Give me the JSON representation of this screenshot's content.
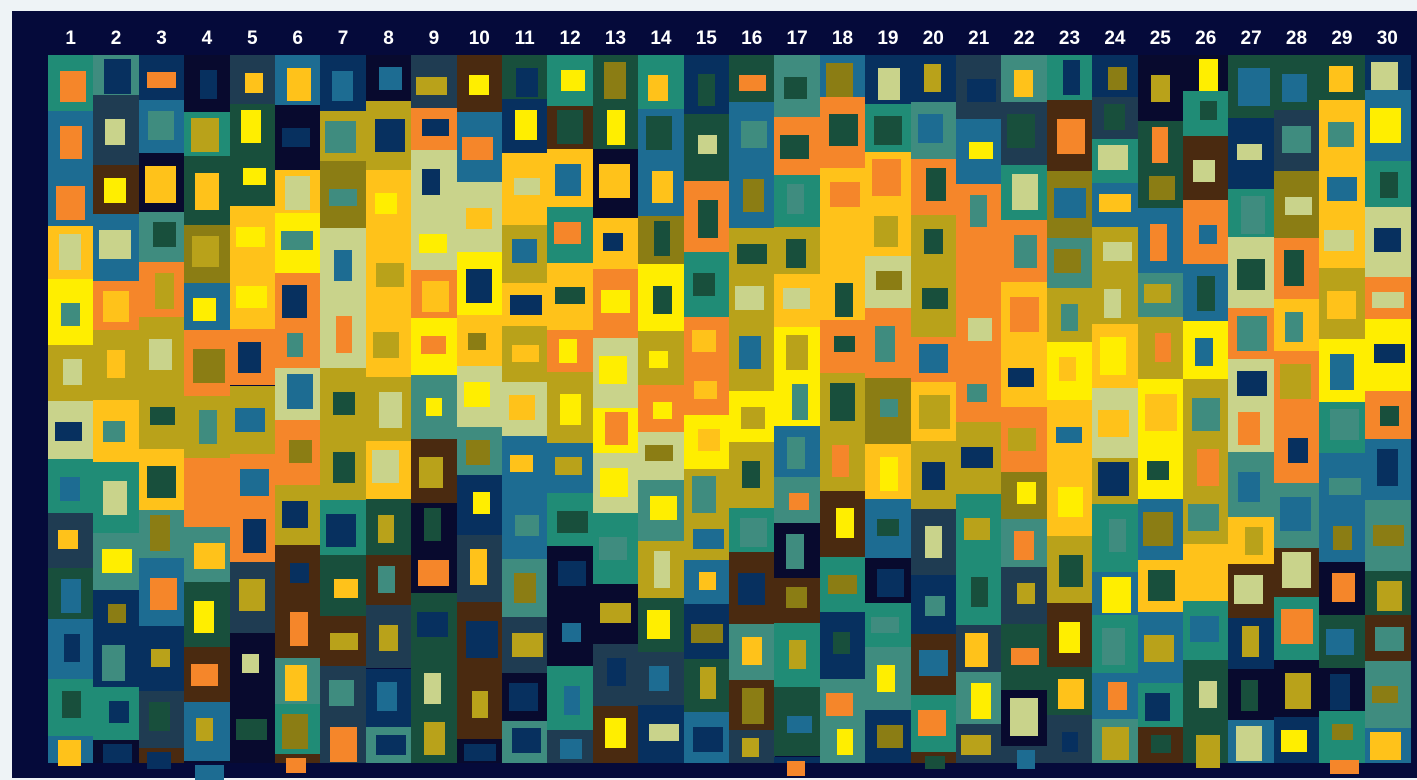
{
  "column_numbers": [
    "1",
    "2",
    "3",
    "4",
    "5",
    "6",
    "7",
    "8",
    "9",
    "10",
    "11",
    "12",
    "13",
    "14",
    "15",
    "16",
    "17",
    "18",
    "19",
    "20",
    "21",
    "22",
    "23",
    "24",
    "25",
    "26",
    "27",
    "28",
    "29",
    "30"
  ],
  "palette": {
    "frame": "#050a3a",
    "bright_yellow": "#ffee00",
    "yellow": "#ffc21a",
    "olive": "#b9a21a",
    "dark_olive": "#8b7d14",
    "orange": "#f5862a",
    "pale_green": "#c9d38b",
    "teal": "#3f8c7f",
    "green_teal": "#208c76",
    "steel_blue": "#1d6c92",
    "dark_green": "#184f3c",
    "slate": "#1f3c52",
    "navy": "#07305f",
    "near_black": "#080a2e",
    "brown": "#4a2a10"
  }
}
